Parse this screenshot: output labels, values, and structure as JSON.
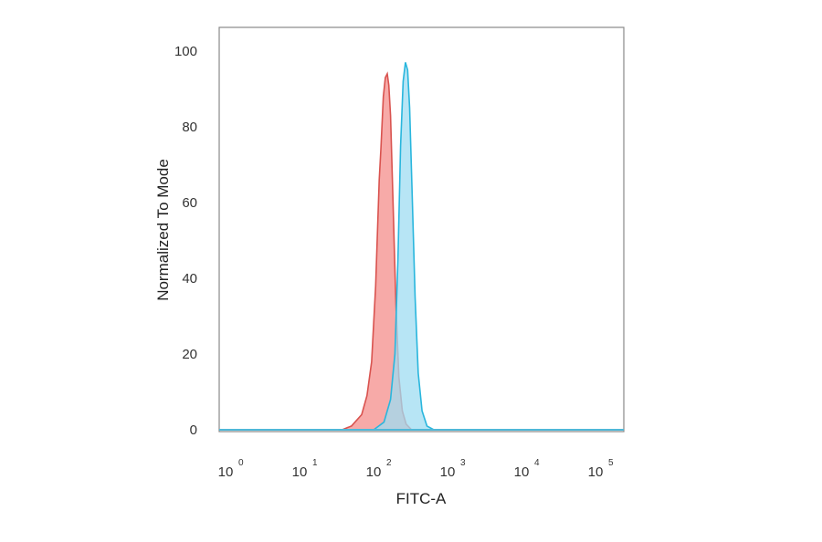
{
  "chart_data": {
    "type": "area",
    "x_scale": "log",
    "xlim": [
      1,
      100000
    ],
    "ylim": [
      0,
      105
    ],
    "xlabel": "FITC-A",
    "ylabel": "Normalized To Mode",
    "y_ticks": [
      "0",
      "20",
      "40",
      "60",
      "80",
      "100"
    ],
    "y_tick_values": [
      0,
      20,
      40,
      60,
      80,
      100
    ],
    "x_ticks": [
      {
        "base": "10",
        "exp": "0",
        "value": 1
      },
      {
        "base": "10",
        "exp": "1",
        "value": 10
      },
      {
        "base": "10",
        "exp": "2",
        "value": 100
      },
      {
        "base": "10",
        "exp": "3",
        "value": 1000
      },
      {
        "base": "10",
        "exp": "4",
        "value": 10000
      },
      {
        "base": "10",
        "exp": "5",
        "value": 100000
      }
    ],
    "grid": false,
    "series": [
      {
        "color_fill": "#f7a5a3",
        "color_line": "#d9534f",
        "points": [
          [
            1,
            0
          ],
          [
            30,
            0
          ],
          [
            40,
            1
          ],
          [
            55,
            4
          ],
          [
            65,
            9
          ],
          [
            75,
            18
          ],
          [
            85,
            38
          ],
          [
            95,
            66
          ],
          [
            100,
            74
          ],
          [
            108,
            88
          ],
          [
            115,
            93
          ],
          [
            122,
            94
          ],
          [
            128,
            91
          ],
          [
            135,
            83
          ],
          [
            145,
            62
          ],
          [
            160,
            33
          ],
          [
            175,
            14
          ],
          [
            195,
            5
          ],
          [
            220,
            1.5
          ],
          [
            260,
            0
          ],
          [
            100000,
            0
          ]
        ]
      },
      {
        "color_fill": "#9fdcf1",
        "color_line": "#29b6dd",
        "points": [
          [
            1,
            0
          ],
          [
            80,
            0
          ],
          [
            110,
            2
          ],
          [
            135,
            8
          ],
          [
            155,
            20
          ],
          [
            170,
            45
          ],
          [
            185,
            75
          ],
          [
            200,
            92
          ],
          [
            215,
            97
          ],
          [
            230,
            95
          ],
          [
            245,
            85
          ],
          [
            265,
            62
          ],
          [
            290,
            35
          ],
          [
            320,
            15
          ],
          [
            360,
            5
          ],
          [
            420,
            1
          ],
          [
            520,
            0
          ],
          [
            100000,
            0
          ]
        ]
      }
    ]
  }
}
